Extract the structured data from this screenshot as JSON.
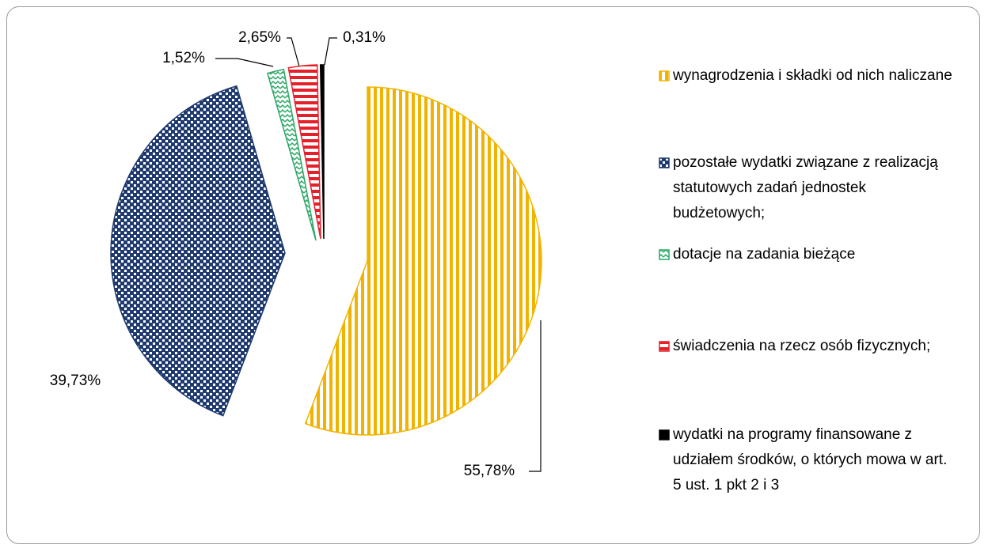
{
  "chart_data": {
    "type": "pie",
    "categories": [
      "wynagrodzenia i składki od nich naliczane",
      "pozostałe wydatki związane z realizacją statutowych zadań jednostek budżetowych;",
      "dotacje na zadania bieżące",
      "świadczenia na rzecz osób fizycznych;",
      "wydatki na programy finansowane z udziałem środków, o których mowa w art. 5 ust. 1 pkt 2 i 3"
    ],
    "values": [
      55.78,
      39.73,
      1.52,
      2.65,
      0.31
    ],
    "value_labels": [
      "55,78%",
      "39,73%",
      "1,52%",
      "2,65%",
      "0,31%"
    ],
    "colors": [
      "#f2b300",
      "#1f3a6e",
      "#2aa866",
      "#e4202a",
      "#000000"
    ],
    "legend": "right"
  }
}
